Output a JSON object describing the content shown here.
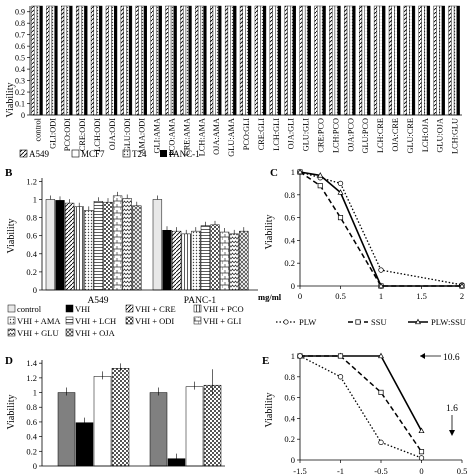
{
  "chart_data": [
    {
      "panel": "A",
      "type": "bar",
      "ylabel": "Viability",
      "ytick_labels": [
        "0",
        "0.1",
        "0.2",
        "0.3",
        "0.4",
        "0.5",
        "0.6",
        "0.7",
        "0.8",
        "0.9"
      ],
      "categories": [
        "control",
        "GLI:ODI",
        "PCO:ODI",
        "CRE:ODI",
        "LCH:ODI",
        "OJA:ODI",
        "GLU:ODI",
        "AMA:ODI",
        "GLI:AMA",
        "PCO:AMA",
        "CRE:AMA",
        "LCH:AMA",
        "OJA:AMA",
        "GLU:AMA",
        "PCO:GLI",
        "CRE:GLI",
        "LCH:GLI",
        "OJA:GLI",
        "GLU:GLI",
        "CRE:PCO",
        "LCH:PCO",
        "OJA:PCO",
        "GLU:PCO",
        "LCH:CRE",
        "OJA:CRE",
        "GLU:CRE",
        "LCH:OJA",
        "GLU:OJA",
        "LCH:GLU"
      ],
      "legend": [
        "A549",
        "MCF7",
        "T24",
        "PANC-1"
      ],
      "value_all": 0.95
    },
    {
      "panel": "B",
      "type": "bar",
      "ylabel": "Viability",
      "ylim": [
        0,
        1.2
      ],
      "yticks": [
        0,
        0.2,
        0.4,
        0.6,
        0.8,
        1,
        1.2
      ],
      "ytick_labels": [
        "0",
        "0.2",
        "0.4",
        "0.6",
        "0.8",
        "1",
        "1.2"
      ],
      "categories": [
        "A549",
        "PANC-1"
      ],
      "series": [
        {
          "name": "control",
          "values": [
            1.0,
            1.0
          ]
        },
        {
          "name": "VHI",
          "values": [
            0.99,
            0.66
          ]
        },
        {
          "name": "VHI + CRE",
          "values": [
            0.96,
            0.65
          ]
        },
        {
          "name": "VHI + PCO",
          "values": [
            0.92,
            0.62
          ]
        },
        {
          "name": "VHI + AMA",
          "values": [
            0.88,
            0.65
          ]
        },
        {
          "name": "VHI + LCH",
          "values": [
            0.98,
            0.71
          ]
        },
        {
          "name": "VHI + ODI",
          "values": [
            0.97,
            0.72
          ]
        },
        {
          "name": "VHI + GLI",
          "values": [
            1.04,
            0.64
          ]
        },
        {
          "name": "VHI + GLU",
          "values": [
            1.01,
            0.62
          ]
        },
        {
          "name": "VHI + OJA",
          "values": [
            0.93,
            0.65
          ]
        }
      ]
    },
    {
      "panel": "C",
      "type": "line",
      "ylabel": "Viability",
      "xlabel": "mg/ml",
      "xlim": [
        0,
        2
      ],
      "ylim": [
        0,
        1
      ],
      "xticks": [
        0,
        0.5,
        1,
        1.5,
        2
      ],
      "xtick_labels": [
        "0",
        "0.5",
        "1",
        "1.5",
        "2"
      ],
      "yticks": [
        0,
        0.2,
        0.4,
        0.6,
        0.8,
        1
      ],
      "ytick_labels": [
        "0",
        "0.2",
        "0.4",
        "0.6",
        "0.8",
        "1"
      ],
      "series": [
        {
          "name": "PLW",
          "x": [
            0,
            0.25,
            0.5,
            1,
            2
          ],
          "y": [
            1.0,
            0.95,
            0.9,
            0.14,
            0.01
          ]
        },
        {
          "name": "SSU",
          "x": [
            0,
            0.25,
            0.5,
            1,
            2
          ],
          "y": [
            1.0,
            0.88,
            0.6,
            0.0,
            0.0
          ]
        },
        {
          "name": "PLW:SSU",
          "x": [
            0,
            0.25,
            0.5,
            1,
            2
          ],
          "y": [
            1.0,
            0.97,
            0.82,
            0.0,
            0.0
          ]
        }
      ]
    },
    {
      "panel": "D",
      "type": "bar",
      "ylabel": "Viability",
      "ylim": [
        0,
        1.4
      ],
      "yticks": [
        0,
        0.2,
        0.4,
        0.6,
        0.8,
        1,
        1.2,
        1.4
      ],
      "ytick_labels": [
        "0",
        "0.2",
        "0.4",
        "0.6",
        "0.8",
        "1",
        "1.2",
        "1.4"
      ],
      "groups": 2,
      "series": [
        {
          "values": [
            1.0,
            1.0
          ]
        },
        {
          "values": [
            0.59,
            0.1
          ]
        },
        {
          "values": [
            1.22,
            1.08
          ]
        },
        {
          "values": [
            1.33,
            1.1
          ]
        }
      ]
    },
    {
      "panel": "E",
      "type": "line",
      "ylabel": "Viability",
      "ylim": [
        0,
        1
      ],
      "yticks": [
        0,
        0.2,
        0.4,
        0.6,
        0.8,
        1
      ],
      "ytick_labels": [
        "0",
        "0.2",
        "0.4",
        "0.6",
        "0.8",
        "1"
      ],
      "xlim": [
        -1.5,
        0.5
      ],
      "xticks": [
        -1.5,
        -1,
        -0.5,
        0,
        0.5
      ],
      "x_tick_labels": [
        "-1.5",
        "-1",
        "-0.5",
        "0",
        "0.5"
      ],
      "annotations": [
        "10.6",
        "1.6"
      ],
      "series": [
        {
          "x": [
            -1.5,
            -1,
            -0.5,
            0
          ],
          "y": [
            1.0,
            1.0,
            1.0,
            0.28
          ]
        },
        {
          "x": [
            -1.5,
            -1,
            -0.5,
            0
          ],
          "y": [
            1.0,
            1.0,
            0.65,
            0.08
          ]
        },
        {
          "x": [
            -1.5,
            -1,
            -0.5,
            0
          ],
          "y": [
            1.0,
            0.8,
            0.17,
            0.02
          ]
        }
      ]
    }
  ],
  "panels": {
    "b": "B",
    "c": "C",
    "d": "D",
    "e": "E"
  }
}
